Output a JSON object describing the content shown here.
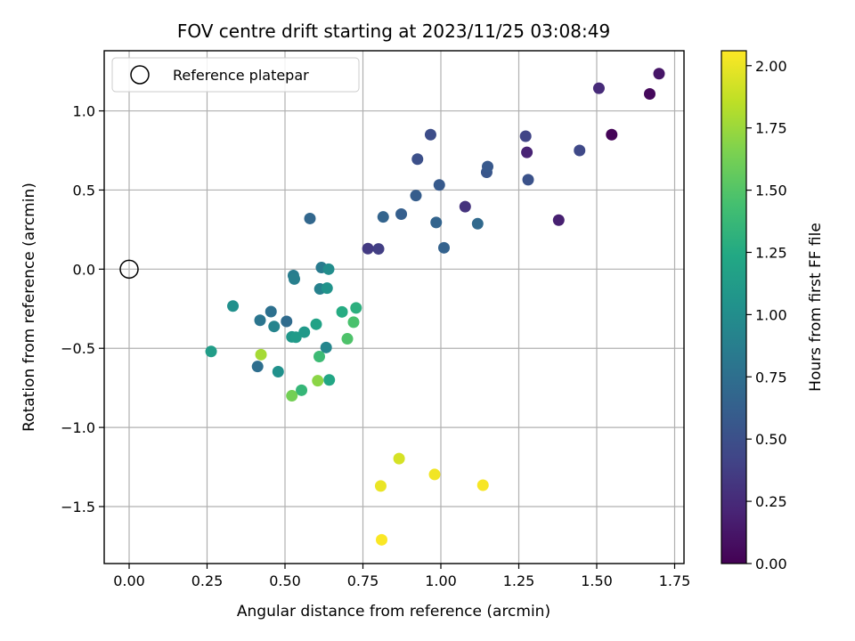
{
  "chart_data": {
    "type": "scatter",
    "title": "FOV centre drift starting at 2023/11/25 03:08:49",
    "xlabel": "Angular distance from reference (arcmin)",
    "ylabel": "Rotation from reference (arcmin)",
    "xlim": [
      -0.08,
      1.78
    ],
    "ylim": [
      -1.86,
      1.38
    ],
    "xticks": [
      0.0,
      0.25,
      0.5,
      0.75,
      1.0,
      1.25,
      1.5,
      1.75
    ],
    "xtick_labels": [
      "0.00",
      "0.25",
      "0.50",
      "0.75",
      "1.00",
      "1.25",
      "1.50",
      "1.75"
    ],
    "yticks": [
      -1.5,
      -1.0,
      -0.5,
      0.0,
      0.5,
      1.0
    ],
    "ytick_labels": [
      "−1.5",
      "−1.0",
      "−0.5",
      "0.0",
      "0.5",
      "1.0"
    ],
    "grid": true,
    "legend": {
      "placement": "top-left",
      "entries": [
        {
          "label": "Reference platepar",
          "marker": "open-circle"
        }
      ]
    },
    "reference_point": {
      "x": 0.0,
      "y": 0.0
    },
    "colorbar": {
      "label": "Hours from first FF file",
      "colormap": "viridis",
      "range": [
        0.0,
        2.06
      ],
      "ticks": [
        0.0,
        0.25,
        0.5,
        0.75,
        1.0,
        1.25,
        1.5,
        1.75,
        2.0
      ],
      "tick_labels": [
        "0.00",
        "0.25",
        "0.50",
        "0.75",
        "1.00",
        "1.25",
        "1.50",
        "1.75",
        "2.00"
      ]
    },
    "series": [
      {
        "marker": "filled-circle",
        "points": [
          {
            "x": 1.548,
            "y": 0.85,
            "c": 0.02
          },
          {
            "x": 1.67,
            "y": 1.107,
            "c": 0.05
          },
          {
            "x": 1.7,
            "y": 1.235,
            "c": 0.12
          },
          {
            "x": 1.378,
            "y": 0.31,
            "c": 0.18
          },
          {
            "x": 1.276,
            "y": 0.738,
            "c": 0.2
          },
          {
            "x": 1.507,
            "y": 1.143,
            "c": 0.25
          },
          {
            "x": 1.078,
            "y": 0.395,
            "c": 0.3
          },
          {
            "x": 0.766,
            "y": 0.13,
            "c": 0.35
          },
          {
            "x": 0.8,
            "y": 0.128,
            "c": 0.38
          },
          {
            "x": 1.272,
            "y": 0.84,
            "c": 0.42
          },
          {
            "x": 1.445,
            "y": 0.75,
            "c": 0.45
          },
          {
            "x": 0.967,
            "y": 0.85,
            "c": 0.48
          },
          {
            "x": 0.925,
            "y": 0.695,
            "c": 0.5
          },
          {
            "x": 1.28,
            "y": 0.565,
            "c": 0.52
          },
          {
            "x": 1.147,
            "y": 0.612,
            "c": 0.55
          },
          {
            "x": 1.15,
            "y": 0.648,
            "c": 0.57
          },
          {
            "x": 0.995,
            "y": 0.532,
            "c": 0.58
          },
          {
            "x": 0.92,
            "y": 0.465,
            "c": 0.6
          },
          {
            "x": 0.873,
            "y": 0.348,
            "c": 0.62
          },
          {
            "x": 1.01,
            "y": 0.135,
            "c": 0.64
          },
          {
            "x": 0.985,
            "y": 0.295,
            "c": 0.66
          },
          {
            "x": 0.58,
            "y": 0.32,
            "c": 0.68
          },
          {
            "x": 0.815,
            "y": 0.33,
            "c": 0.66
          },
          {
            "x": 1.118,
            "y": 0.287,
            "c": 0.7
          },
          {
            "x": 0.505,
            "y": -0.33,
            "c": 0.72
          },
          {
            "x": 0.412,
            "y": -0.615,
            "c": 0.74
          },
          {
            "x": 0.455,
            "y": -0.268,
            "c": 0.76
          },
          {
            "x": 0.42,
            "y": -0.323,
            "c": 0.8
          },
          {
            "x": 0.617,
            "y": 0.01,
            "c": 0.85
          },
          {
            "x": 0.527,
            "y": -0.04,
            "c": 0.86
          },
          {
            "x": 0.53,
            "y": -0.062,
            "c": 0.88
          },
          {
            "x": 0.612,
            "y": -0.125,
            "c": 0.9
          },
          {
            "x": 0.465,
            "y": -0.362,
            "c": 0.92
          },
          {
            "x": 0.632,
            "y": -0.495,
            "c": 0.94
          },
          {
            "x": 0.64,
            "y": 0.0,
            "c": 1.0
          },
          {
            "x": 0.333,
            "y": -0.233,
            "c": 1.02
          },
          {
            "x": 0.478,
            "y": -0.648,
            "c": 1.03
          },
          {
            "x": 0.635,
            "y": -0.12,
            "c": 1.05
          },
          {
            "x": 0.522,
            "y": -0.428,
            "c": 1.08
          },
          {
            "x": 0.562,
            "y": -0.398,
            "c": 1.1
          },
          {
            "x": 0.535,
            "y": -0.43,
            "c": 1.12
          },
          {
            "x": 0.263,
            "y": -0.52,
            "c": 1.14
          },
          {
            "x": 0.6,
            "y": -0.348,
            "c": 1.18
          },
          {
            "x": 0.642,
            "y": -0.7,
            "c": 1.22
          },
          {
            "x": 0.683,
            "y": -0.27,
            "c": 1.26
          },
          {
            "x": 0.728,
            "y": -0.245,
            "c": 1.3
          },
          {
            "x": 0.553,
            "y": -0.765,
            "c": 1.36
          },
          {
            "x": 0.61,
            "y": -0.552,
            "c": 1.4
          },
          {
            "x": 0.72,
            "y": -0.335,
            "c": 1.46
          },
          {
            "x": 0.7,
            "y": -0.44,
            "c": 1.48
          },
          {
            "x": 0.522,
            "y": -0.8,
            "c": 1.62
          },
          {
            "x": 0.605,
            "y": -0.705,
            "c": 1.7
          },
          {
            "x": 0.423,
            "y": -0.54,
            "c": 1.78
          },
          {
            "x": 0.866,
            "y": -1.197,
            "c": 1.93
          },
          {
            "x": 0.807,
            "y": -1.37,
            "c": 2.0
          },
          {
            "x": 0.98,
            "y": -1.297,
            "c": 2.02
          },
          {
            "x": 1.135,
            "y": -1.365,
            "c": 2.04
          },
          {
            "x": 0.81,
            "y": -1.71,
            "c": 2.05
          }
        ]
      }
    ]
  }
}
